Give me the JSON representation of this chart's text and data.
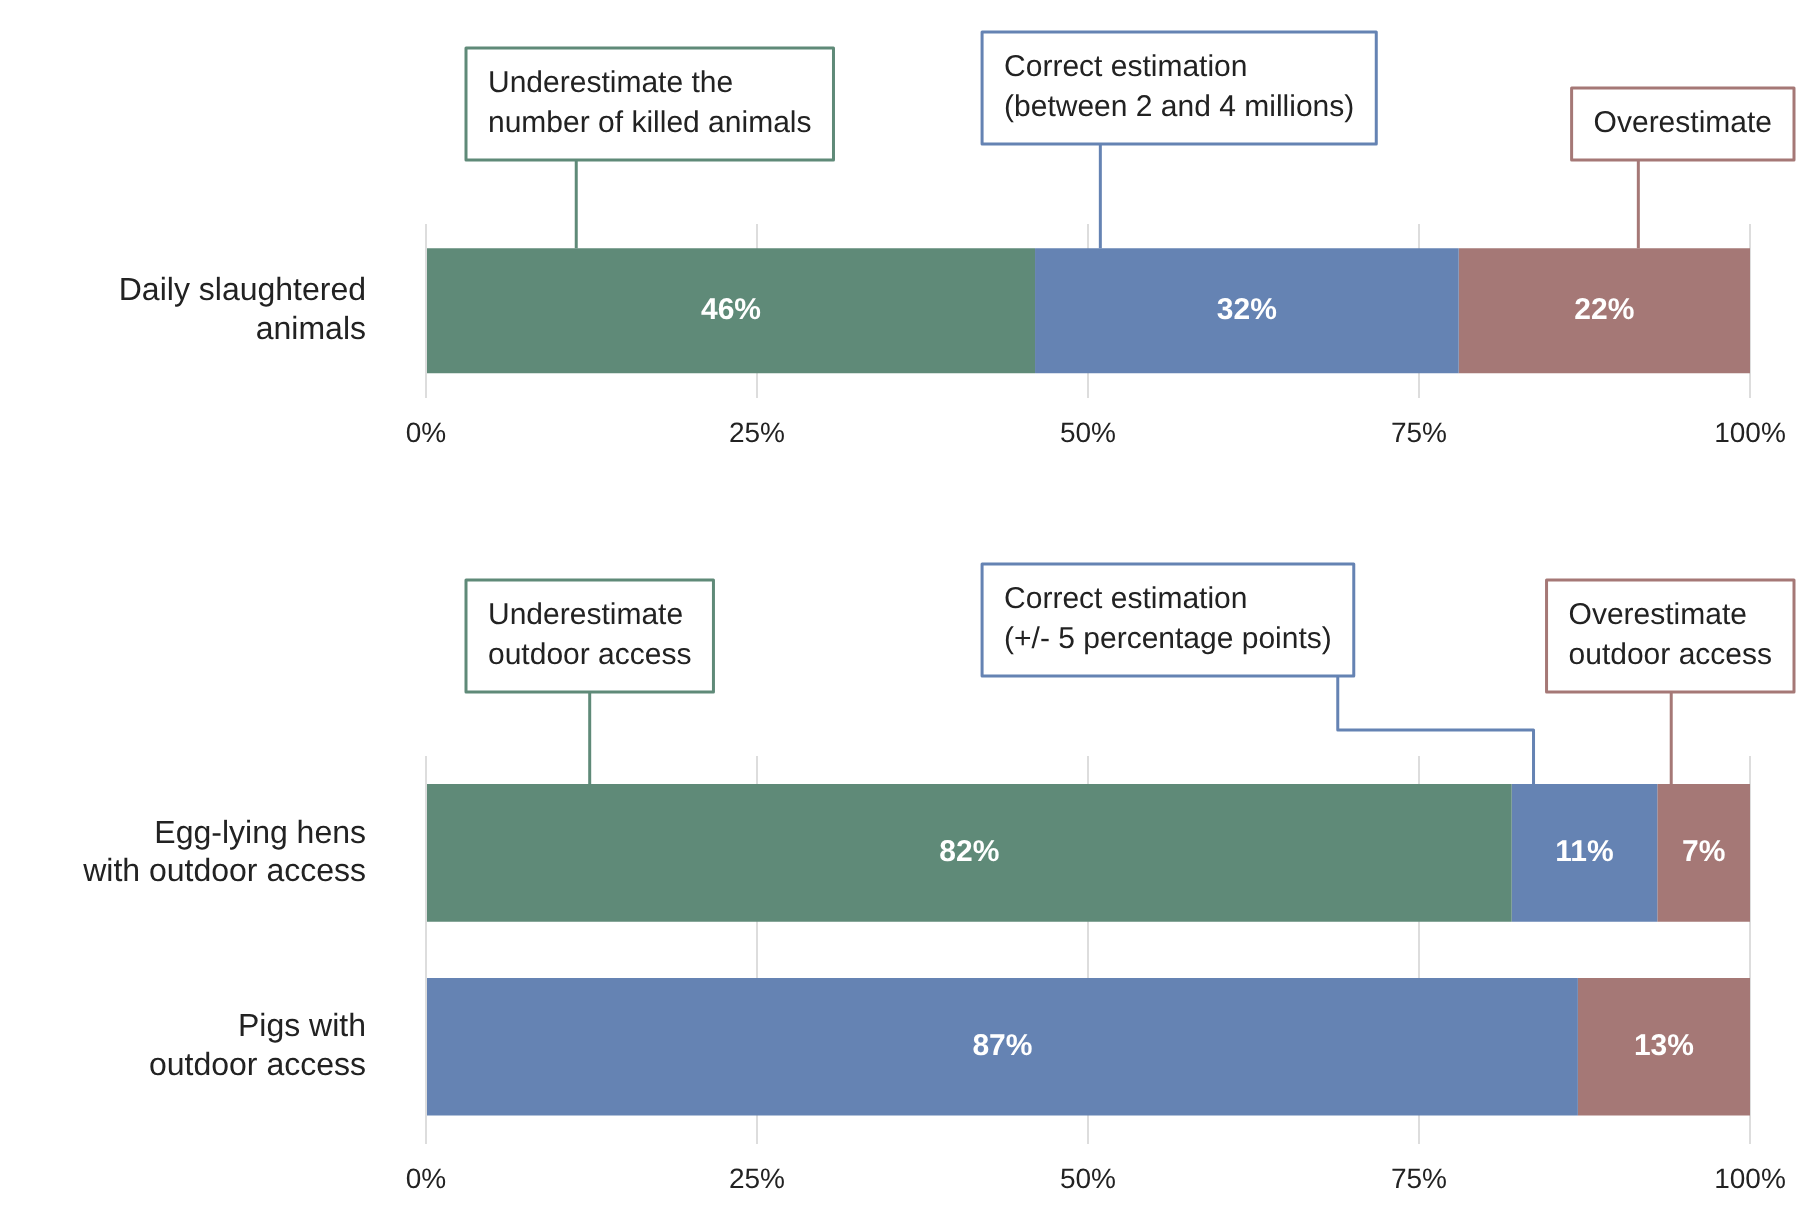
{
  "chart_data": [
    {
      "type": "bar",
      "orientation": "horizontal",
      "stacked": true,
      "categories": [
        "Daily slaughtered\nanimals"
      ],
      "xlim": [
        0,
        100
      ],
      "xticks": [
        {
          "value": 0,
          "label": "0%"
        },
        {
          "value": 25,
          "label": "25%"
        },
        {
          "value": 50,
          "label": "50%"
        },
        {
          "value": 75,
          "label": "75%"
        },
        {
          "value": 100,
          "label": "100%"
        }
      ],
      "grid": "x",
      "series": [
        {
          "name": "Underestimate the\nnumber of killed animals",
          "color": "#5f8a78",
          "values": [
            46
          ],
          "value_labels": [
            "46%"
          ]
        },
        {
          "name": "Correct estimation\n(between 2 and 4 millions)",
          "color": "#6583b3",
          "values": [
            32
          ],
          "value_labels": [
            "32%"
          ]
        },
        {
          "name": "Overestimate",
          "color": "#a57876",
          "values": [
            22
          ],
          "value_labels": [
            "22%"
          ]
        }
      ]
    },
    {
      "type": "bar",
      "orientation": "horizontal",
      "stacked": true,
      "categories": [
        "Egg-lying hens\nwith outdoor access",
        "Pigs with\noutdoor access"
      ],
      "xlim": [
        0,
        100
      ],
      "xticks": [
        {
          "value": 0,
          "label": "0%"
        },
        {
          "value": 25,
          "label": "25%"
        },
        {
          "value": 50,
          "label": "50%"
        },
        {
          "value": 75,
          "label": "75%"
        },
        {
          "value": 100,
          "label": "100%"
        }
      ],
      "grid": "x",
      "series": [
        {
          "name": "Underestimate\noutdoor access",
          "color": "#5f8a78",
          "values": [
            82,
            0
          ],
          "value_labels": [
            "82%",
            null
          ]
        },
        {
          "name": "Correct estimation\n(+/- 5 percentage points)",
          "color": "#6583b3",
          "values": [
            11,
            87
          ],
          "value_labels": [
            "11%",
            "87%"
          ]
        },
        {
          "name": "Overestimate\noutdoor access",
          "color": "#a57876",
          "values": [
            7,
            13
          ],
          "value_labels": [
            "7%",
            "13%"
          ]
        }
      ]
    }
  ]
}
